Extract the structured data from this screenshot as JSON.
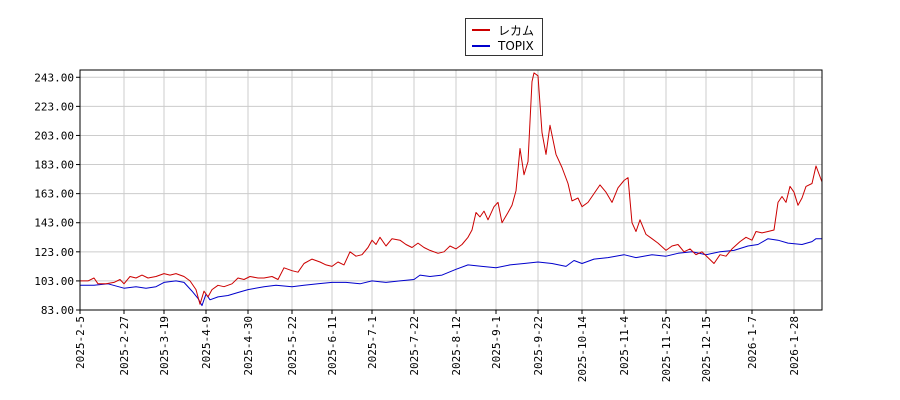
{
  "chart_data": {
    "type": "line",
    "legend_position": "top-center",
    "grid": true,
    "ylim": [
      83,
      248
    ],
    "yticks": [
      "83.00",
      "103.00",
      "123.00",
      "143.00",
      "163.00",
      "183.00",
      "203.00",
      "223.00",
      "243.00"
    ],
    "xrange": [
      "2025-02-05",
      "2026-02-11"
    ],
    "xticks": [
      "2025-2-5",
      "2025-2-27",
      "2025-3-19",
      "2025-4-9",
      "2025-4-30",
      "2025-5-22",
      "2025-6-11",
      "2025-7-1",
      "2025-7-22",
      "2025-8-12",
      "2025-9-1",
      "2025-9-22",
      "2025-10-14",
      "2025-11-4",
      "2025-11-25",
      "2025-12-15",
      "2026-1-7",
      "2026-1-28"
    ],
    "series": [
      {
        "name": "レカム",
        "color": "#cc0000",
        "points": [
          [
            "2025-02-05",
            103
          ],
          [
            "2025-02-09",
            103
          ],
          [
            "2025-02-12",
            105
          ],
          [
            "2025-02-14",
            101
          ],
          [
            "2025-02-18",
            101
          ],
          [
            "2025-02-22",
            102
          ],
          [
            "2025-02-25",
            104
          ],
          [
            "2025-02-27",
            101
          ],
          [
            "2025-03-02",
            106
          ],
          [
            "2025-03-05",
            105
          ],
          [
            "2025-03-08",
            107
          ],
          [
            "2025-03-11",
            105
          ],
          [
            "2025-03-15",
            106
          ],
          [
            "2025-03-19",
            108
          ],
          [
            "2025-03-22",
            107
          ],
          [
            "2025-03-25",
            108
          ],
          [
            "2025-03-29",
            106
          ],
          [
            "2025-04-01",
            103
          ],
          [
            "2025-04-04",
            97
          ],
          [
            "2025-04-06",
            87
          ],
          [
            "2025-04-08",
            96
          ],
          [
            "2025-04-10",
            92
          ],
          [
            "2025-04-12",
            97
          ],
          [
            "2025-04-15",
            100
          ],
          [
            "2025-04-18",
            99
          ],
          [
            "2025-04-22",
            101
          ],
          [
            "2025-04-25",
            105
          ],
          [
            "2025-04-28",
            104
          ],
          [
            "2025-05-01",
            106
          ],
          [
            "2025-05-05",
            105
          ],
          [
            "2025-05-08",
            105
          ],
          [
            "2025-05-12",
            106
          ],
          [
            "2025-05-15",
            104
          ],
          [
            "2025-05-18",
            112
          ],
          [
            "2025-05-22",
            110
          ],
          [
            "2025-05-25",
            109
          ],
          [
            "2025-05-28",
            115
          ],
          [
            "2025-06-01",
            118
          ],
          [
            "2025-06-05",
            116
          ],
          [
            "2025-06-08",
            114
          ],
          [
            "2025-06-11",
            113
          ],
          [
            "2025-06-14",
            116
          ],
          [
            "2025-06-17",
            114
          ],
          [
            "2025-06-20",
            123
          ],
          [
            "2025-06-23",
            120
          ],
          [
            "2025-06-26",
            121
          ],
          [
            "2025-06-29",
            126
          ],
          [
            "2025-07-01",
            131
          ],
          [
            "2025-07-03",
            128
          ],
          [
            "2025-07-05",
            133
          ],
          [
            "2025-07-08",
            127
          ],
          [
            "2025-07-11",
            132
          ],
          [
            "2025-07-15",
            131
          ],
          [
            "2025-07-18",
            128
          ],
          [
            "2025-07-21",
            126
          ],
          [
            "2025-07-24",
            129
          ],
          [
            "2025-07-27",
            126
          ],
          [
            "2025-07-30",
            124
          ],
          [
            "2025-08-03",
            122
          ],
          [
            "2025-08-06",
            123
          ],
          [
            "2025-08-09",
            127
          ],
          [
            "2025-08-12",
            125
          ],
          [
            "2025-08-15",
            128
          ],
          [
            "2025-08-18",
            133
          ],
          [
            "2025-08-20",
            138
          ],
          [
            "2025-08-22",
            150
          ],
          [
            "2025-08-24",
            147
          ],
          [
            "2025-08-26",
            151
          ],
          [
            "2025-08-28",
            145
          ],
          [
            "2025-08-31",
            154
          ],
          [
            "2025-09-02",
            157
          ],
          [
            "2025-09-04",
            143
          ],
          [
            "2025-09-07",
            150
          ],
          [
            "2025-09-09",
            155
          ],
          [
            "2025-09-11",
            165
          ],
          [
            "2025-09-13",
            194
          ],
          [
            "2025-09-15",
            176
          ],
          [
            "2025-09-17",
            185
          ],
          [
            "2025-09-19",
            240
          ],
          [
            "2025-09-20",
            246
          ],
          [
            "2025-09-22",
            244
          ],
          [
            "2025-09-24",
            205
          ],
          [
            "2025-09-26",
            190
          ],
          [
            "2025-09-28",
            210
          ],
          [
            "2025-10-01",
            190
          ],
          [
            "2025-10-04",
            181
          ],
          [
            "2025-10-07",
            170
          ],
          [
            "2025-10-09",
            158
          ],
          [
            "2025-10-12",
            160
          ],
          [
            "2025-10-14",
            154
          ],
          [
            "2025-10-17",
            157
          ],
          [
            "2025-10-20",
            163
          ],
          [
            "2025-10-23",
            169
          ],
          [
            "2025-10-26",
            164
          ],
          [
            "2025-10-29",
            157
          ],
          [
            "2025-11-01",
            167
          ],
          [
            "2025-11-04",
            172
          ],
          [
            "2025-11-06",
            174
          ],
          [
            "2025-11-08",
            143
          ],
          [
            "2025-11-10",
            137
          ],
          [
            "2025-11-12",
            145
          ],
          [
            "2025-11-15",
            135
          ],
          [
            "2025-11-18",
            132
          ],
          [
            "2025-11-21",
            129
          ],
          [
            "2025-11-25",
            124
          ],
          [
            "2025-11-28",
            127
          ],
          [
            "2025-12-01",
            128
          ],
          [
            "2025-12-04",
            123
          ],
          [
            "2025-12-07",
            125
          ],
          [
            "2025-12-10",
            121
          ],
          [
            "2025-12-13",
            123
          ],
          [
            "2025-12-16",
            119
          ],
          [
            "2025-12-19",
            115
          ],
          [
            "2025-12-22",
            121
          ],
          [
            "2025-12-25",
            120
          ],
          [
            "2025-12-28",
            125
          ],
          [
            "2026-01-01",
            130
          ],
          [
            "2026-01-04",
            133
          ],
          [
            "2026-01-07",
            131
          ],
          [
            "2026-01-09",
            137
          ],
          [
            "2026-01-12",
            136
          ],
          [
            "2026-01-15",
            137
          ],
          [
            "2026-01-18",
            138
          ],
          [
            "2026-01-20",
            157
          ],
          [
            "2026-01-22",
            161
          ],
          [
            "2026-01-24",
            157
          ],
          [
            "2026-01-26",
            168
          ],
          [
            "2026-01-28",
            164
          ],
          [
            "2026-01-30",
            155
          ],
          [
            "2026-02-01",
            160
          ],
          [
            "2026-02-03",
            168
          ],
          [
            "2026-02-06",
            170
          ],
          [
            "2026-02-08",
            182
          ],
          [
            "2026-02-11",
            171
          ]
        ]
      },
      {
        "name": "TOPIX",
        "color": "#0000cc",
        "points": [
          [
            "2025-02-05",
            100
          ],
          [
            "2025-02-12",
            100
          ],
          [
            "2025-02-19",
            101
          ],
          [
            "2025-02-27",
            98
          ],
          [
            "2025-03-05",
            99
          ],
          [
            "2025-03-10",
            98
          ],
          [
            "2025-03-15",
            99
          ],
          [
            "2025-03-19",
            102
          ],
          [
            "2025-03-25",
            103
          ],
          [
            "2025-03-29",
            102
          ],
          [
            "2025-04-02",
            96
          ],
          [
            "2025-04-05",
            91
          ],
          [
            "2025-04-07",
            86
          ],
          [
            "2025-04-09",
            94
          ],
          [
            "2025-04-11",
            90
          ],
          [
            "2025-04-15",
            92
          ],
          [
            "2025-04-20",
            93
          ],
          [
            "2025-04-25",
            95
          ],
          [
            "2025-04-30",
            97
          ],
          [
            "2025-05-08",
            99
          ],
          [
            "2025-05-14",
            100
          ],
          [
            "2025-05-22",
            99
          ],
          [
            "2025-05-28",
            100
          ],
          [
            "2025-06-04",
            101
          ],
          [
            "2025-06-11",
            102
          ],
          [
            "2025-06-18",
            102
          ],
          [
            "2025-06-25",
            101
          ],
          [
            "2025-07-01",
            103
          ],
          [
            "2025-07-08",
            102
          ],
          [
            "2025-07-15",
            103
          ],
          [
            "2025-07-22",
            104
          ],
          [
            "2025-07-25",
            107
          ],
          [
            "2025-07-30",
            106
          ],
          [
            "2025-08-05",
            107
          ],
          [
            "2025-08-12",
            111
          ],
          [
            "2025-08-18",
            114
          ],
          [
            "2025-08-25",
            113
          ],
          [
            "2025-09-01",
            112
          ],
          [
            "2025-09-08",
            114
          ],
          [
            "2025-09-15",
            115
          ],
          [
            "2025-09-22",
            116
          ],
          [
            "2025-09-29",
            115
          ],
          [
            "2025-10-06",
            113
          ],
          [
            "2025-10-10",
            117
          ],
          [
            "2025-10-14",
            115
          ],
          [
            "2025-10-20",
            118
          ],
          [
            "2025-10-27",
            119
          ],
          [
            "2025-11-04",
            121
          ],
          [
            "2025-11-10",
            119
          ],
          [
            "2025-11-18",
            121
          ],
          [
            "2025-11-25",
            120
          ],
          [
            "2025-12-01",
            122
          ],
          [
            "2025-12-08",
            123
          ],
          [
            "2025-12-15",
            121
          ],
          [
            "2025-12-22",
            123
          ],
          [
            "2025-12-29",
            124
          ],
          [
            "2026-01-05",
            127
          ],
          [
            "2026-01-10",
            128
          ],
          [
            "2026-01-15",
            132
          ],
          [
            "2026-01-20",
            131
          ],
          [
            "2026-01-25",
            129
          ],
          [
            "2026-02-01",
            128
          ],
          [
            "2026-02-06",
            130
          ],
          [
            "2026-02-08",
            132
          ],
          [
            "2026-02-11",
            132
          ]
        ]
      }
    ]
  }
}
